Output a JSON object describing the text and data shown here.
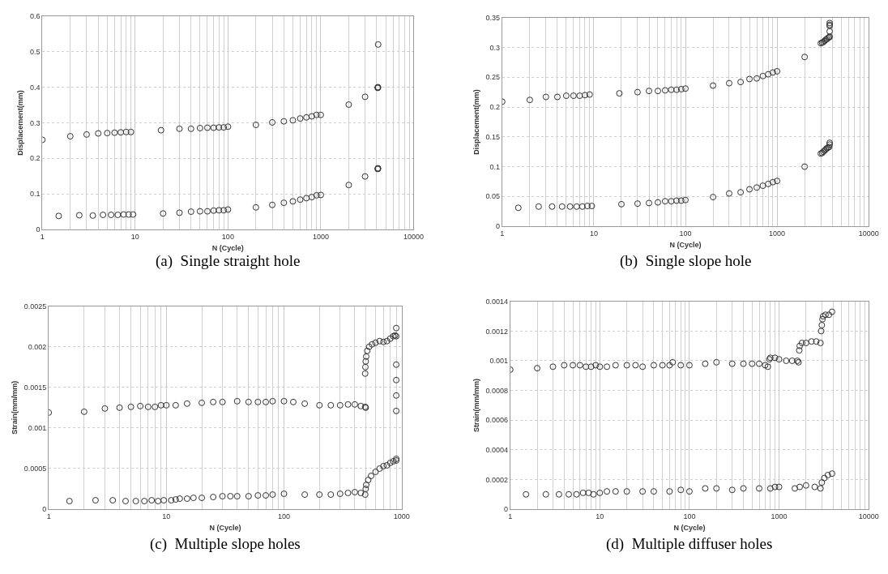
{
  "chart_data": [
    {
      "type": "scatter",
      "xlabel": "N (Cycle)",
      "ylabel": "Displacement(mm)",
      "annotations": [
        "(a)  Single straight hole"
      ],
      "log": "x",
      "grid": true,
      "marker": "circle",
      "xlim": [
        1,
        10000
      ],
      "xticks": [
        1,
        10,
        100,
        1000,
        10000
      ],
      "ylim": [
        0,
        0.6
      ],
      "yticks": [
        0,
        0.1,
        0.2,
        0.3,
        0.4,
        0.5,
        0.6
      ],
      "series": [
        {
          "color": "#333333",
          "x": [
            1,
            2,
            3,
            4,
            5,
            6,
            7,
            8,
            9,
            19,
            30,
            40,
            50,
            60,
            70,
            80,
            90,
            100,
            200,
            300,
            400,
            500,
            600,
            700,
            800,
            900,
            1000,
            2000,
            3000,
            4100,
            4120,
            4140,
            4150
          ],
          "values": [
            0.252,
            0.262,
            0.267,
            0.27,
            0.271,
            0.272,
            0.273,
            0.274,
            0.274,
            0.279,
            0.283,
            0.283,
            0.285,
            0.286,
            0.286,
            0.287,
            0.287,
            0.289,
            0.294,
            0.301,
            0.304,
            0.307,
            0.312,
            0.315,
            0.318,
            0.322,
            0.322,
            0.351,
            0.373,
            0.398,
            0.4,
            0.399,
            0.52
          ]
        },
        {
          "color": "#333333",
          "x": [
            1.5,
            2.5,
            3.5,
            4.5,
            5.5,
            6.5,
            7.5,
            8.5,
            9.5,
            20,
            30,
            40,
            50,
            60,
            70,
            80,
            90,
            100,
            200,
            300,
            400,
            500,
            600,
            700,
            800,
            900,
            1000,
            2000,
            3000,
            4100,
            4120,
            4140
          ],
          "values": [
            0.038,
            0.04,
            0.039,
            0.041,
            0.041,
            0.041,
            0.042,
            0.042,
            0.042,
            0.045,
            0.047,
            0.05,
            0.051,
            0.051,
            0.053,
            0.054,
            0.054,
            0.056,
            0.062,
            0.069,
            0.075,
            0.079,
            0.084,
            0.088,
            0.091,
            0.096,
            0.097,
            0.125,
            0.149,
            0.17,
            0.172,
            0.171
          ]
        }
      ]
    },
    {
      "type": "scatter",
      "xlabel": "N (Cycle)",
      "ylabel": "Displacement(mm)",
      "annotations": [
        "(b)  Single slope hole"
      ],
      "log": "x",
      "grid": true,
      "marker": "circle",
      "xlim": [
        1,
        10000
      ],
      "xticks": [
        1,
        10,
        100,
        1000,
        10000
      ],
      "ylim": [
        0,
        0.35
      ],
      "yticks": [
        0,
        0.05,
        0.1,
        0.15,
        0.2,
        0.25,
        0.3,
        0.35
      ],
      "series": [
        {
          "color": "#333333",
          "x": [
            1,
            2,
            3,
            4,
            5,
            6,
            7,
            8,
            9,
            19,
            30,
            40,
            50,
            60,
            70,
            80,
            90,
            100,
            200,
            300,
            400,
            500,
            600,
            700,
            800,
            900,
            1000,
            2000,
            3000,
            3100,
            3200,
            3300,
            3400,
            3500,
            3600,
            3700,
            3750,
            3750,
            3750,
            3750,
            3750
          ],
          "values": [
            0.209,
            0.212,
            0.217,
            0.217,
            0.219,
            0.219,
            0.219,
            0.22,
            0.221,
            0.223,
            0.225,
            0.227,
            0.227,
            0.228,
            0.229,
            0.229,
            0.23,
            0.231,
            0.236,
            0.24,
            0.242,
            0.247,
            0.248,
            0.252,
            0.255,
            0.258,
            0.26,
            0.284,
            0.307,
            0.308,
            0.309,
            0.311,
            0.313,
            0.314,
            0.316,
            0.317,
            0.318,
            0.327,
            0.336,
            0.338,
            0.341
          ]
        },
        {
          "color": "#333333",
          "x": [
            1.5,
            2.5,
            3.5,
            4.5,
            5.5,
            6.5,
            7.5,
            8.5,
            9.5,
            20,
            30,
            40,
            50,
            60,
            70,
            80,
            90,
            100,
            200,
            300,
            400,
            500,
            600,
            700,
            800,
            900,
            1000,
            2000,
            3000,
            3100,
            3200,
            3300,
            3400,
            3500,
            3600,
            3700,
            3750,
            3750
          ],
          "values": [
            0.031,
            0.033,
            0.033,
            0.033,
            0.033,
            0.033,
            0.033,
            0.034,
            0.034,
            0.037,
            0.038,
            0.039,
            0.04,
            0.042,
            0.042,
            0.043,
            0.043,
            0.044,
            0.049,
            0.055,
            0.057,
            0.062,
            0.065,
            0.068,
            0.071,
            0.074,
            0.076,
            0.1,
            0.122,
            0.123,
            0.125,
            0.127,
            0.129,
            0.131,
            0.132,
            0.133,
            0.137,
            0.14
          ]
        }
      ]
    },
    {
      "type": "scatter",
      "xlabel": "N (Cycle)",
      "ylabel": "Strain(mm/mm)",
      "annotations": [
        "(c)  Multiple slope holes"
      ],
      "log": "x",
      "grid": true,
      "marker": "circle",
      "xlim": [
        1,
        1000
      ],
      "xticks": [
        1,
        10,
        100,
        1000
      ],
      "ylim": [
        0,
        0.0025
      ],
      "yticks": [
        0,
        0.0005,
        0.001,
        0.0015,
        0.002,
        0.0025
      ],
      "series": [
        {
          "color": "#333333",
          "x": [
            1,
            2,
            3,
            4,
            5,
            6,
            7,
            8,
            9,
            10,
            12,
            15,
            20,
            25,
            30,
            40,
            50,
            60,
            70,
            80,
            100,
            120,
            150,
            200,
            250,
            300,
            350,
            400,
            450,
            490,
            495,
            490,
            492,
            495,
            500,
            510,
            530,
            560,
            600,
            650,
            700,
            750,
            800,
            850,
            880,
            900,
            900,
            900,
            900,
            900,
            900
          ],
          "values": [
            0.00119,
            0.0012,
            0.00124,
            0.00125,
            0.00126,
            0.00127,
            0.00126,
            0.00126,
            0.00128,
            0.00128,
            0.00128,
            0.0013,
            0.00131,
            0.00132,
            0.00132,
            0.00133,
            0.00132,
            0.00132,
            0.00132,
            0.00133,
            0.00133,
            0.00132,
            0.0013,
            0.00128,
            0.00128,
            0.00128,
            0.00129,
            0.00129,
            0.00127,
            0.00126,
            0.00125,
            0.00167,
            0.00175,
            0.00182,
            0.00188,
            0.00195,
            0.002,
            0.00203,
            0.00205,
            0.00207,
            0.00206,
            0.00207,
            0.0021,
            0.00213,
            0.00214,
            0.00213,
            0.00223,
            0.00178,
            0.00159,
            0.0014,
            0.00121
          ]
        },
        {
          "color": "#333333",
          "x": [
            1.5,
            2.5,
            3.5,
            4.5,
            5.5,
            6.5,
            7.5,
            8.5,
            9.5,
            11,
            12,
            13,
            15,
            17,
            20,
            25,
            30,
            35,
            40,
            50,
            60,
            70,
            80,
            100,
            150,
            200,
            250,
            300,
            350,
            400,
            450,
            490,
            495,
            500,
            520,
            550,
            600,
            650,
            700,
            750,
            800,
            850,
            900,
            900
          ],
          "values": [
            0.0001,
            0.00011,
            0.00011,
            0.0001,
            0.0001,
            0.0001,
            0.00011,
            0.0001,
            0.00011,
            0.00011,
            0.00012,
            0.00013,
            0.00013,
            0.00014,
            0.00014,
            0.00015,
            0.00016,
            0.00016,
            0.00016,
            0.00016,
            0.00017,
            0.00017,
            0.00018,
            0.00019,
            0.00018,
            0.00018,
            0.00018,
            0.00019,
            0.0002,
            0.00021,
            0.0002,
            0.00018,
            0.00025,
            0.0003,
            0.00036,
            0.00041,
            0.00046,
            0.0005,
            0.00053,
            0.00054,
            0.00057,
            0.00059,
            0.0006,
            0.00062
          ]
        }
      ]
    },
    {
      "type": "scatter",
      "xlabel": "N (Cycle)",
      "ylabel": "Strain(mm/mm)",
      "annotations": [
        "(d)  Multiple diffuser holes"
      ],
      "log": "x",
      "grid": true,
      "marker": "circle",
      "xlim": [
        1,
        10000
      ],
      "xticks": [
        1,
        10,
        100,
        1000,
        10000
      ],
      "ylim": [
        0,
        0.0014
      ],
      "yticks": [
        0,
        0.0002,
        0.0004,
        0.0006,
        0.0008,
        0.001,
        0.0012,
        0.0014
      ],
      "series": [
        {
          "color": "#333333",
          "x": [
            1,
            2,
            3,
            4,
            5,
            6,
            7,
            8,
            9,
            10,
            12,
            15,
            20,
            25,
            30,
            40,
            50,
            60,
            65,
            80,
            100,
            150,
            200,
            300,
            400,
            500,
            600,
            700,
            750,
            780,
            800,
            900,
            1000,
            1200,
            1400,
            1600,
            1650,
            1680,
            1700,
            1800,
            2000,
            2300,
            2600,
            2900,
            2950,
            3000,
            3050,
            3100,
            3300,
            3600,
            3900
          ],
          "values": [
            0.00094,
            0.00095,
            0.00096,
            0.00097,
            0.00097,
            0.00097,
            0.00096,
            0.00096,
            0.00097,
            0.00096,
            0.00096,
            0.00097,
            0.00097,
            0.00097,
            0.00096,
            0.00097,
            0.00097,
            0.00097,
            0.00099,
            0.00097,
            0.00097,
            0.00098,
            0.00099,
            0.00098,
            0.00098,
            0.00098,
            0.00098,
            0.00097,
            0.00096,
            0.00101,
            0.00102,
            0.00102,
            0.00101,
            0.001,
            0.001,
            0.001,
            0.00099,
            0.00107,
            0.0011,
            0.00112,
            0.00112,
            0.00113,
            0.00113,
            0.00112,
            0.0012,
            0.00124,
            0.00128,
            0.0013,
            0.00131,
            0.00131,
            0.00133
          ]
        },
        {
          "color": "#333333",
          "x": [
            1.5,
            2.5,
            3.5,
            4.5,
            5.5,
            6.5,
            7.5,
            8.5,
            10,
            12,
            15,
            20,
            30,
            40,
            60,
            80,
            100,
            150,
            200,
            300,
            400,
            600,
            800,
            900,
            1000,
            1500,
            1700,
            2000,
            2500,
            2900,
            3000,
            3200,
            3500,
            3900
          ],
          "values": [
            0.0001,
            0.0001,
            0.0001,
            0.0001,
            0.0001,
            0.00011,
            0.00011,
            0.0001,
            0.00011,
            0.00012,
            0.00012,
            0.00012,
            0.00012,
            0.00012,
            0.00012,
            0.00013,
            0.00012,
            0.00014,
            0.00014,
            0.00013,
            0.00014,
            0.00014,
            0.00014,
            0.00015,
            0.00015,
            0.00014,
            0.00015,
            0.00016,
            0.00015,
            0.00014,
            0.00018,
            0.00021,
            0.00023,
            0.00024
          ]
        }
      ]
    }
  ]
}
